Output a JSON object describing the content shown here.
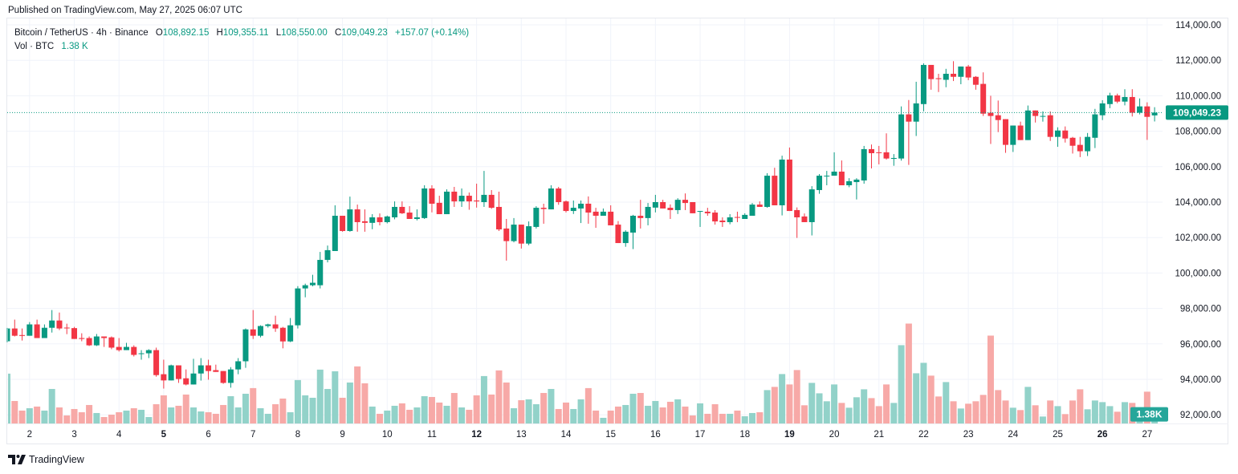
{
  "published": "Published on TradingView.com, May 27, 2025 06:07 UTC",
  "legend": {
    "symbol": "Bitcoin / TetherUS · 4h · Binance",
    "o_label": "O",
    "o": "108,892.15",
    "h_label": "H",
    "h": "109,355.11",
    "l_label": "L",
    "l": "108,550.00",
    "c_label": "C",
    "c": "109,049.23",
    "change": "+157.07 (+0.14%)",
    "vol_label": "Vol · BTC",
    "vol": "1.38 K"
  },
  "footer": {
    "brand": "TradingView",
    "logo_icon": "tradingview-logo-icon"
  },
  "colors": {
    "up": "#089981",
    "down": "#f23645",
    "vol_up": "#92d2c9",
    "vol_down": "#f7a9a7",
    "grid": "#f0f3fa",
    "last_price": "#089981",
    "vol_tag": "#26a69a"
  },
  "chart_data": {
    "type": "candlestick",
    "interval": "4h",
    "x_tick_labels": [
      {
        "label": "2",
        "bold": false
      },
      {
        "label": "3",
        "bold": false
      },
      {
        "label": "4",
        "bold": false
      },
      {
        "label": "5",
        "bold": true
      },
      {
        "label": "6",
        "bold": false
      },
      {
        "label": "7",
        "bold": false
      },
      {
        "label": "8",
        "bold": false
      },
      {
        "label": "9",
        "bold": false
      },
      {
        "label": "10",
        "bold": false
      },
      {
        "label": "11",
        "bold": false
      },
      {
        "label": "12",
        "bold": true
      },
      {
        "label": "13",
        "bold": false
      },
      {
        "label": "14",
        "bold": false
      },
      {
        "label": "15",
        "bold": false
      },
      {
        "label": "16",
        "bold": false
      },
      {
        "label": "17",
        "bold": false
      },
      {
        "label": "18",
        "bold": false
      },
      {
        "label": "19",
        "bold": true
      },
      {
        "label": "20",
        "bold": false
      },
      {
        "label": "21",
        "bold": false
      },
      {
        "label": "22",
        "bold": false
      },
      {
        "label": "23",
        "bold": false
      },
      {
        "label": "24",
        "bold": false
      },
      {
        "label": "25",
        "bold": false
      },
      {
        "label": "26",
        "bold": true
      },
      {
        "label": "27",
        "bold": false
      }
    ],
    "y_ticks": [
      114000,
      112000,
      110000,
      108000,
      106000,
      104000,
      102000,
      100000,
      98000,
      96000,
      94000,
      92000
    ],
    "y_tick_labels": [
      "114,000.00",
      "112,000.00",
      "110,000.00",
      "108,000.00",
      "106,000.00",
      "104,000.00",
      "102,000.00",
      "100,000.00",
      "98,000.00",
      "96,000.00",
      "94,000.00",
      "92,000.00"
    ],
    "ylim": [
      91900,
      114200
    ],
    "grid": true,
    "last_price": 109049.23,
    "last_price_label": "109,049.23",
    "last_volume_label": "1.38K",
    "volume_unit": "K BTC",
    "ohlc_columns": [
      "open",
      "high",
      "low",
      "close"
    ],
    "ohlc": [
      [
        96150,
        96900,
        96100,
        96870
      ],
      [
        96870,
        97370,
        96420,
        96460
      ],
      [
        96500,
        96870,
        96190,
        96450
      ],
      [
        96460,
        97230,
        96460,
        97100
      ],
      [
        97100,
        97370,
        96330,
        96330
      ],
      [
        96330,
        97100,
        96330,
        96910
      ],
      [
        96910,
        97910,
        96640,
        97320
      ],
      [
        97320,
        97770,
        96780,
        96870
      ],
      [
        96920,
        97140,
        96550,
        96890
      ],
      [
        96890,
        96960,
        96280,
        96280
      ],
      [
        96330,
        96600,
        96150,
        96280
      ],
      [
        96330,
        96420,
        95880,
        95920
      ],
      [
        95920,
        96560,
        95880,
        96420
      ],
      [
        96420,
        96420,
        95830,
        96330
      ],
      [
        96370,
        96420,
        95700,
        95790
      ],
      [
        95830,
        96330,
        95570,
        95650
      ],
      [
        95650,
        96060,
        95650,
        95830
      ],
      [
        95830,
        95920,
        95290,
        95380
      ],
      [
        95430,
        95650,
        95110,
        95470
      ],
      [
        95470,
        95700,
        95200,
        95650
      ],
      [
        95650,
        95790,
        94150,
        94240
      ],
      [
        94290,
        95110,
        93480,
        93940
      ],
      [
        93940,
        94830,
        93940,
        94790
      ],
      [
        94790,
        94790,
        93800,
        94020
      ],
      [
        94060,
        94560,
        93660,
        93710
      ],
      [
        93710,
        95160,
        93710,
        94330
      ],
      [
        94330,
        95200,
        93930,
        94790
      ],
      [
        94790,
        95110,
        93980,
        94470
      ],
      [
        94520,
        94830,
        94420,
        94420
      ],
      [
        94470,
        94470,
        93750,
        93800
      ],
      [
        93800,
        94690,
        93530,
        94560
      ],
      [
        94560,
        95200,
        94290,
        95020
      ],
      [
        95020,
        96870,
        94650,
        96820
      ],
      [
        96820,
        97910,
        96280,
        96460
      ],
      [
        96460,
        97050,
        96370,
        97010
      ],
      [
        97010,
        97140,
        96920,
        97100
      ],
      [
        97100,
        97590,
        96680,
        96870
      ],
      [
        96910,
        96960,
        95750,
        96140
      ],
      [
        96140,
        97460,
        96100,
        97050
      ],
      [
        97050,
        99260,
        96870,
        99130
      ],
      [
        99130,
        99400,
        98630,
        99310
      ],
      [
        99310,
        99900,
        99250,
        99450
      ],
      [
        99310,
        101190,
        99130,
        100740
      ],
      [
        100740,
        101550,
        100600,
        101290
      ],
      [
        101240,
        103820,
        101240,
        103230
      ],
      [
        103230,
        103230,
        102330,
        102370
      ],
      [
        102370,
        104310,
        102330,
        103590
      ],
      [
        103590,
        103860,
        102330,
        102870
      ],
      [
        102920,
        103590,
        102330,
        102830
      ],
      [
        102830,
        103320,
        102470,
        103140
      ],
      [
        103140,
        103360,
        102690,
        102870
      ],
      [
        102870,
        103240,
        102800,
        103190
      ],
      [
        103140,
        104040,
        103030,
        103730
      ],
      [
        103730,
        104040,
        103330,
        103370
      ],
      [
        103410,
        103770,
        103050,
        103050
      ],
      [
        103050,
        103590,
        102970,
        103140
      ],
      [
        103100,
        104950,
        103050,
        104770
      ],
      [
        104770,
        104950,
        103420,
        103910
      ],
      [
        103960,
        104360,
        103320,
        103320
      ],
      [
        103320,
        104720,
        103320,
        104590
      ],
      [
        104590,
        104860,
        103730,
        104040
      ],
      [
        104040,
        104770,
        103730,
        104360
      ],
      [
        104360,
        104540,
        103570,
        104040
      ],
      [
        104090,
        105040,
        103690,
        104040
      ],
      [
        104000,
        105760,
        103730,
        104410
      ],
      [
        104410,
        104680,
        103620,
        103680
      ],
      [
        103730,
        104590,
        102370,
        102460
      ],
      [
        102510,
        103050,
        100700,
        101800
      ],
      [
        101800,
        103100,
        101730,
        102730
      ],
      [
        102730,
        102730,
        101380,
        101660
      ],
      [
        101660,
        102910,
        101570,
        102640
      ],
      [
        102600,
        103770,
        102510,
        103680
      ],
      [
        103680,
        103910,
        102780,
        103610
      ],
      [
        103590,
        104950,
        103590,
        104770
      ],
      [
        104770,
        104860,
        103850,
        104000
      ],
      [
        104040,
        104090,
        103420,
        103500
      ],
      [
        103500,
        104090,
        103330,
        103680
      ],
      [
        103640,
        104090,
        102820,
        103910
      ],
      [
        103910,
        104320,
        102780,
        103410
      ],
      [
        103460,
        103680,
        102550,
        103230
      ],
      [
        103230,
        103640,
        103230,
        103460
      ],
      [
        103460,
        103820,
        102690,
        102690
      ],
      [
        102730,
        102930,
        101690,
        101690
      ],
      [
        101690,
        102410,
        101480,
        102330
      ],
      [
        102280,
        103280,
        101350,
        103230
      ],
      [
        103230,
        104130,
        102510,
        103100
      ],
      [
        103100,
        103950,
        102690,
        103730
      ],
      [
        103690,
        104410,
        103420,
        104000
      ],
      [
        104000,
        104130,
        103640,
        103640
      ],
      [
        103680,
        103870,
        103050,
        103550
      ],
      [
        103550,
        104220,
        103330,
        104130
      ],
      [
        104130,
        104490,
        103550,
        103950
      ],
      [
        104000,
        104000,
        103370,
        103370
      ],
      [
        103460,
        103500,
        102600,
        103500
      ],
      [
        103460,
        103680,
        103230,
        103370
      ],
      [
        103410,
        103550,
        102730,
        102910
      ],
      [
        102960,
        103140,
        102600,
        102870
      ],
      [
        102870,
        103320,
        102750,
        103140
      ],
      [
        103160,
        103460,
        102870,
        103140
      ],
      [
        103050,
        103370,
        103050,
        103280
      ],
      [
        103230,
        103950,
        103230,
        103860
      ],
      [
        103860,
        104040,
        103730,
        103730
      ],
      [
        103730,
        105630,
        103680,
        105490
      ],
      [
        105490,
        105940,
        103820,
        103820
      ],
      [
        103820,
        106620,
        103250,
        106400
      ],
      [
        106400,
        107080,
        103500,
        103500
      ],
      [
        103550,
        103700,
        101980,
        103140
      ],
      [
        103190,
        103360,
        102870,
        102870
      ],
      [
        102870,
        104900,
        102120,
        104720
      ],
      [
        104680,
        105580,
        104470,
        105490
      ],
      [
        105450,
        105760,
        104950,
        105490
      ],
      [
        105490,
        106810,
        105490,
        105720
      ],
      [
        105720,
        106350,
        104950,
        104950
      ],
      [
        104950,
        105350,
        104840,
        105180
      ],
      [
        105130,
        105350,
        104150,
        105270
      ],
      [
        105220,
        107170,
        105040,
        106990
      ],
      [
        106990,
        107250,
        105900,
        106760
      ],
      [
        106810,
        107170,
        106130,
        106790
      ],
      [
        106810,
        107880,
        106400,
        106460
      ],
      [
        106440,
        106710,
        106050,
        106490
      ],
      [
        106460,
        109400,
        106340,
        108950
      ],
      [
        108950,
        109760,
        106100,
        108540
      ],
      [
        108540,
        110790,
        107730,
        109570
      ],
      [
        109530,
        111830,
        109120,
        111740
      ],
      [
        111740,
        111740,
        110340,
        110940
      ],
      [
        110990,
        111240,
        110210,
        110940
      ],
      [
        110900,
        111520,
        110480,
        111240
      ],
      [
        111240,
        111950,
        110830,
        111070
      ],
      [
        111070,
        111650,
        110650,
        111650
      ],
      [
        111650,
        111740,
        110880,
        111030
      ],
      [
        111070,
        111110,
        110340,
        110620
      ],
      [
        110670,
        111320,
        108860,
        108990
      ],
      [
        109040,
        110000,
        107280,
        108860
      ],
      [
        108900,
        109730,
        107950,
        108630
      ],
      [
        108680,
        108680,
        106780,
        107230
      ],
      [
        107230,
        108320,
        106830,
        108320
      ],
      [
        108320,
        108540,
        107500,
        107500
      ],
      [
        107500,
        109450,
        107500,
        109170
      ],
      [
        109170,
        109170,
        108490,
        108860
      ],
      [
        108840,
        109120,
        108540,
        108860
      ],
      [
        108900,
        109120,
        107450,
        107680
      ],
      [
        107680,
        108220,
        107120,
        108040
      ],
      [
        108040,
        108270,
        107360,
        107590
      ],
      [
        107630,
        107680,
        106740,
        107180
      ],
      [
        107230,
        107680,
        106540,
        106870
      ],
      [
        106870,
        107900,
        106600,
        107680
      ],
      [
        107630,
        109260,
        107050,
        108950
      ],
      [
        108900,
        109750,
        108630,
        109570
      ],
      [
        109530,
        110170,
        109300,
        110020
      ],
      [
        110020,
        110120,
        109580,
        109670
      ],
      [
        109670,
        110370,
        109460,
        109930
      ],
      [
        109930,
        110370,
        108830,
        109040
      ],
      [
        109040,
        109850,
        108950,
        109400
      ],
      [
        109400,
        109630,
        107510,
        108810
      ],
      [
        108892.15,
        109355.11,
        108550,
        109049.23
      ]
    ],
    "volume": [
      6.96,
      3.14,
      1.8,
      2.13,
      2.36,
      1.8,
      4.82,
      2.24,
      1.12,
      2.02,
      1.57,
      2.58,
      1.46,
      0.9,
      1.23,
      1.57,
      1.8,
      2.13,
      1.91,
      0.9,
      2.69,
      3.93,
      2.24,
      2.47,
      4.04,
      2.24,
      1.68,
      1.57,
      1.35,
      2.58,
      3.81,
      2.24,
      4.15,
      4.94,
      2.13,
      1.35,
      2.69,
      3.48,
      1.57,
      6.06,
      3.93,
      3.59,
      7.52,
      4.82,
      7.29,
      3.59,
      5.72,
      7.97,
      5.61,
      2.36,
      1.35,
      1.8,
      2.47,
      2.81,
      1.91,
      2.24,
      3.81,
      3.7,
      2.92,
      2.47,
      4.26,
      2.24,
      1.91,
      3.93,
      6.62,
      4.04,
      7.41,
      5.72,
      2.13,
      3.25,
      3.37,
      2.69,
      4.26,
      4.82,
      2.02,
      2.92,
      2.02,
      3.37,
      4.94,
      1.8,
      0.79,
      1.8,
      2.36,
      2.58,
      4.15,
      4.26,
      2.47,
      3.14,
      2.24,
      3.03,
      3.37,
      2.36,
      1.12,
      2.81,
      1.35,
      2.69,
      1.35,
      1.35,
      1.8,
      1.01,
      1.46,
      1.57,
      4.66,
      5.11,
      6.9,
      5.45,
      7.46,
      2.54,
      5.67,
      4.21,
      3.1,
      5.45,
      2.87,
      2.2,
      3.66,
      4.77,
      3.54,
      2.42,
      5.45,
      2.87,
      10.93,
      13.95,
      7.01,
      8.47,
      6.68,
      3.77,
      5.78,
      3.1,
      2.09,
      2.76,
      3.1,
      3.99,
      12.27,
      4.66,
      3.21,
      2.2,
      1.87,
      5.11,
      2.54,
      0.97,
      3.21,
      2.42,
      1.31,
      3.21,
      4.77,
      1.98,
      3.21,
      2.98,
      2.42,
      1.64,
      2.98,
      2.87,
      1.31,
      4.44,
      1.38
    ]
  }
}
